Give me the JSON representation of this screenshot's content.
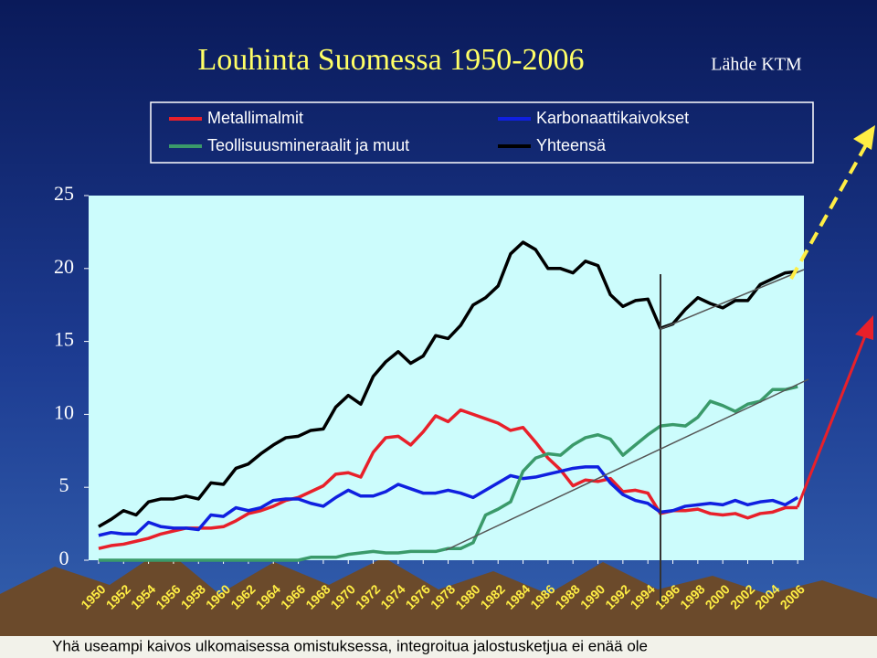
{
  "chart_data": {
    "type": "line",
    "title": "Louhinta Suomessa 1950-2006",
    "source": "Lähde KTM",
    "footer": "Yhä useampi kaivos ulkomaisessa omistuksessa, integroitua jalostusketjua ei enää ole",
    "x": [
      1950,
      1951,
      1952,
      1953,
      1954,
      1955,
      1956,
      1957,
      1958,
      1959,
      1960,
      1961,
      1962,
      1963,
      1964,
      1965,
      1966,
      1967,
      1968,
      1969,
      1970,
      1971,
      1972,
      1973,
      1974,
      1975,
      1976,
      1977,
      1978,
      1979,
      1980,
      1981,
      1982,
      1983,
      1984,
      1985,
      1986,
      1987,
      1988,
      1989,
      1990,
      1991,
      1992,
      1993,
      1994,
      1995,
      1996,
      1997,
      1998,
      1999,
      2000,
      2001,
      2002,
      2003,
      2004,
      2005,
      2006
    ],
    "xlim": [
      1949.2,
      2006.5
    ],
    "xticks": [
      1950,
      1952,
      1954,
      1956,
      1958,
      1960,
      1962,
      1964,
      1966,
      1968,
      1970,
      1972,
      1974,
      1976,
      1978,
      1980,
      1982,
      1984,
      1986,
      1988,
      1990,
      1992,
      1994,
      1996,
      1998,
      2000,
      2002,
      2004,
      2006
    ],
    "ylim": [
      0,
      25
    ],
    "yticks": [
      0,
      5,
      10,
      15,
      20,
      25
    ],
    "grid": false,
    "legend": "top",
    "series": [
      {
        "name": "Metallimalmit",
        "color": "#e8202a",
        "values": [
          0.8,
          1.0,
          1.1,
          1.3,
          1.5,
          1.8,
          2.0,
          2.2,
          2.2,
          2.2,
          2.3,
          2.7,
          3.2,
          3.4,
          3.7,
          4.1,
          4.3,
          4.7,
          5.1,
          5.9,
          6.0,
          5.7,
          7.4,
          8.4,
          8.5,
          7.9,
          8.8,
          9.9,
          9.5,
          10.3,
          10.0,
          9.7,
          9.4,
          8.9,
          9.1,
          8.1,
          7.0,
          6.2,
          5.1,
          5.5,
          5.4,
          5.6,
          4.7,
          4.8,
          4.6,
          3.2,
          3.4,
          3.4,
          3.5,
          3.2,
          3.1,
          3.2,
          2.9,
          3.2,
          3.3,
          3.6,
          3.6
        ]
      },
      {
        "name": "Karbonaattikaivokset",
        "color": "#1020e0",
        "values": [
          1.7,
          1.9,
          1.8,
          1.8,
          2.6,
          2.3,
          2.2,
          2.2,
          2.1,
          3.1,
          3.0,
          3.6,
          3.4,
          3.6,
          4.1,
          4.2,
          4.2,
          3.9,
          3.7,
          4.3,
          4.8,
          4.4,
          4.4,
          4.7,
          5.2,
          4.9,
          4.6,
          4.6,
          4.8,
          4.6,
          4.3,
          4.8,
          5.3,
          5.8,
          5.6,
          5.7,
          5.9,
          6.1,
          6.3,
          6.4,
          6.4,
          5.3,
          4.5,
          4.1,
          3.9,
          3.3,
          3.4,
          3.7,
          3.8,
          3.9,
          3.8,
          4.1,
          3.8,
          4.0,
          4.1,
          3.8,
          4.3
        ]
      },
      {
        "name": "Teollisuusmineraalit ja muut",
        "color": "#3a9a6a",
        "values": [
          0,
          0,
          0,
          0,
          0,
          0,
          0,
          0,
          0,
          0,
          0,
          0,
          0,
          0,
          0,
          0,
          0,
          0.2,
          0.2,
          0.2,
          0.4,
          0.5,
          0.6,
          0.5,
          0.5,
          0.6,
          0.6,
          0.6,
          0.8,
          0.8,
          1.2,
          3.1,
          3.5,
          4.0,
          6.1,
          7.0,
          7.3,
          7.2,
          7.9,
          8.4,
          8.6,
          8.3,
          7.2,
          7.9,
          8.6,
          9.2,
          9.3,
          9.2,
          9.8,
          10.9,
          10.6,
          10.2,
          10.7,
          10.9,
          11.7,
          11.7,
          11.9
        ]
      },
      {
        "name": "Yhteensä",
        "color": "#000000",
        "values": [
          2.3,
          2.8,
          3.4,
          3.1,
          4.0,
          4.2,
          4.2,
          4.4,
          4.2,
          5.3,
          5.2,
          6.3,
          6.6,
          7.3,
          7.9,
          8.4,
          8.5,
          8.9,
          9.0,
          10.5,
          11.3,
          10.7,
          12.6,
          13.6,
          14.3,
          13.5,
          14.0,
          15.4,
          15.2,
          16.1,
          17.5,
          18.0,
          18.8,
          21.0,
          21.8,
          21.3,
          20.0,
          20.0,
          19.7,
          20.5,
          20.2,
          18.2,
          17.4,
          17.8,
          17.9,
          15.9,
          16.2,
          17.2,
          18.0,
          17.6,
          17.3,
          17.8,
          17.8,
          18.9,
          19.3,
          19.7,
          19.8
        ]
      }
    ]
  }
}
